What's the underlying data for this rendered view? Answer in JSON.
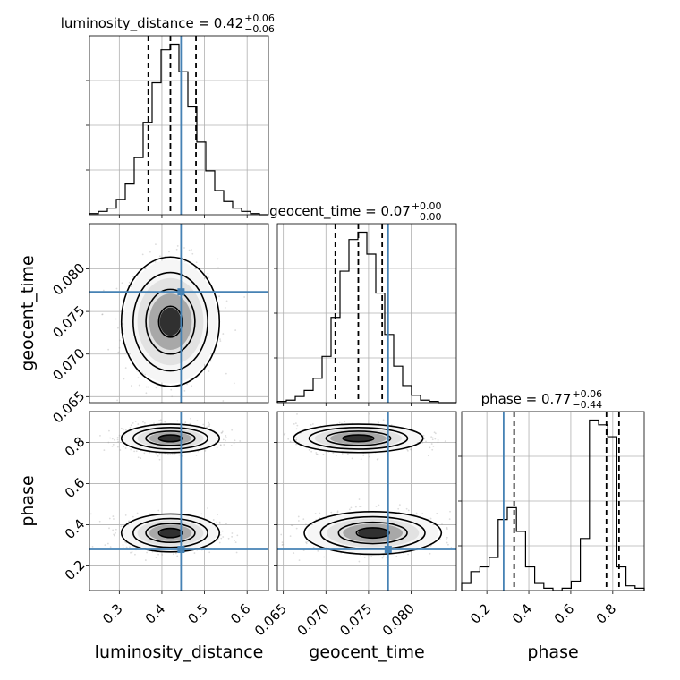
{
  "chart_data": {
    "type": "corner",
    "parameters": [
      {
        "key": "luminosity_distance",
        "label": "luminosity_distance",
        "title": {
          "text": "luminosity_distance = 0.42",
          "plus": "+0.06",
          "minus": "−0.06"
        },
        "range": [
          0.23,
          0.65
        ],
        "ticks": [
          0.3,
          0.4,
          0.5,
          0.6
        ],
        "tick_labels": [
          "0.3",
          "0.4",
          "0.5",
          "0.6"
        ],
        "quantiles": [
          0.368,
          0.42,
          0.48
        ],
        "truth": 0.445,
        "hist": {
          "edges": [
            0.23,
            0.251,
            0.272,
            0.293,
            0.314,
            0.335,
            0.356,
            0.377,
            0.398,
            0.419,
            0.44,
            0.461,
            0.482,
            0.503,
            0.524,
            0.545,
            0.566,
            0.587,
            0.608,
            0.629,
            0.65
          ],
          "counts": [
            1,
            3,
            6,
            14,
            28,
            52,
            84,
            120,
            150,
            155,
            130,
            98,
            66,
            40,
            22,
            12,
            6,
            3,
            1,
            0
          ]
        }
      },
      {
        "key": "geocent_time",
        "label": "geocent_time",
        "title": {
          "text": "geocent_time = 0.07",
          "plus": "+0.00",
          "minus": "−0.00"
        },
        "range": [
          0.0643,
          0.0853
        ],
        "ticks": [
          0.065,
          0.07,
          0.075,
          0.08
        ],
        "tick_labels": [
          "0.065",
          "0.070",
          "0.075",
          "0.080"
        ],
        "quantiles": [
          0.0711,
          0.0738,
          0.0766
        ],
        "truth": 0.0773,
        "hist": {
          "edges": [
            0.0643,
            0.06535,
            0.0664,
            0.06745,
            0.0685,
            0.06955,
            0.0706,
            0.07165,
            0.0727,
            0.07375,
            0.0748,
            0.07585,
            0.0769,
            0.07795,
            0.079,
            0.08005,
            0.0811,
            0.08215,
            0.0832,
            0.08425,
            0.0853
          ],
          "counts": [
            1,
            2,
            5,
            10,
            20,
            38,
            70,
            108,
            134,
            140,
            122,
            90,
            56,
            30,
            14,
            6,
            2,
            1,
            0,
            0
          ]
        }
      },
      {
        "key": "phase",
        "label": "phase",
        "title": {
          "text": "phase = 0.77",
          "plus": "+0.06",
          "minus": "−0.44"
        },
        "range": [
          0.08,
          0.95
        ],
        "ticks": [
          0.2,
          0.4,
          0.6,
          0.8
        ],
        "tick_labels": [
          "0.2",
          "0.4",
          "0.6",
          "0.8"
        ],
        "quantiles": [
          0.33,
          0.77,
          0.83
        ],
        "truth": 0.28,
        "hist": {
          "edges": [
            0.08,
            0.1235,
            0.167,
            0.2105,
            0.254,
            0.2975,
            0.341,
            0.3845,
            0.428,
            0.4715,
            0.515,
            0.5585,
            0.602,
            0.6455,
            0.689,
            0.7325,
            0.776,
            0.8195,
            0.863,
            0.9065,
            0.95
          ],
          "counts": [
            3,
            8,
            10,
            14,
            30,
            35,
            25,
            10,
            3,
            1,
            0,
            1,
            4,
            22,
            72,
            70,
            65,
            10,
            2,
            1
          ]
        }
      }
    ],
    "pairs": [
      {
        "x": "luminosity_distance",
        "y": "geocent_time",
        "centers": [
          [
            0.42,
            0.0738
          ]
        ],
        "widths": [
          [
            0.05,
            0.0033
          ]
        ]
      },
      {
        "x": "luminosity_distance",
        "y": "phase",
        "centers": [
          [
            0.42,
            0.82
          ],
          [
            0.42,
            0.36
          ]
        ],
        "widths": [
          [
            0.05,
            0.03
          ],
          [
            0.05,
            0.04
          ]
        ]
      },
      {
        "x": "geocent_time",
        "y": "phase",
        "centers": [
          [
            0.0738,
            0.82
          ],
          [
            0.0755,
            0.36
          ]
        ],
        "widths": [
          [
            0.0033,
            0.03
          ],
          [
            0.0035,
            0.045
          ]
        ]
      }
    ],
    "grid": true,
    "truth_color": "#4682b4",
    "contour_color": "#000000",
    "scatter_color": "#9a9a9a"
  }
}
